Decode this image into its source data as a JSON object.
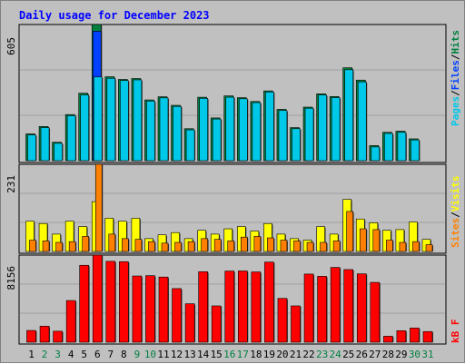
{
  "title": "Daily usage for December 2023",
  "colors": {
    "pages": "#00c8e8",
    "files": "#0040ff",
    "hits": "#008040",
    "visits": "#ffff00",
    "sites": "#ff8000",
    "kbytes": "#ff0000",
    "weekday_label": "#000000",
    "weekend_label": "#008040"
  },
  "chart_data": [
    {
      "type": "bar",
      "panel": "hits_files_pages",
      "ymax_label": "605",
      "ymax": 605,
      "categories": [
        "1",
        "2",
        "3",
        "4",
        "5",
        "6",
        "7",
        "8",
        "9",
        "10",
        "11",
        "12",
        "13",
        "14",
        "15",
        "16",
        "17",
        "18",
        "19",
        "20",
        "21",
        "22",
        "23",
        "24",
        "25",
        "26",
        "27",
        "28",
        "29",
        "30",
        "31"
      ],
      "weekend": [
        2,
        3,
        9,
        10,
        16,
        17,
        23,
        24,
        30,
        31
      ],
      "series": [
        {
          "name": "Hits",
          "values": [
            119,
            152,
            82,
            205,
            300,
            605,
            373,
            361,
            365,
            270,
            284,
            246,
            142,
            282,
            190,
            288,
            280,
            263,
            310,
            228,
            147,
            238,
            297,
            285,
            413,
            358,
            67,
            126,
            131,
            97,
            0
          ]
        },
        {
          "name": "Files",
          "values": [
            0,
            0,
            0,
            0,
            0,
            575,
            0,
            0,
            0,
            0,
            0,
            0,
            0,
            0,
            0,
            0,
            0,
            0,
            0,
            0,
            0,
            0,
            0,
            0,
            0,
            0,
            0,
            0,
            0,
            0,
            0
          ]
        },
        {
          "name": "Pages",
          "values": [
            114,
            147,
            77,
            200,
            292,
            372,
            366,
            356,
            359,
            265,
            279,
            241,
            137,
            277,
            185,
            282,
            275,
            258,
            305,
            223,
            142,
            233,
            292,
            280,
            404,
            350,
            61,
            121,
            126,
            92,
            0
          ]
        }
      ],
      "legend": [
        "Pages",
        "Files",
        "Hits"
      ]
    },
    {
      "type": "bar",
      "panel": "visits_sites",
      "ymax_label": "231",
      "ymax": 231,
      "categories": [
        "1",
        "2",
        "3",
        "4",
        "5",
        "6",
        "7",
        "8",
        "9",
        "10",
        "11",
        "12",
        "13",
        "14",
        "15",
        "16",
        "17",
        "18",
        "19",
        "20",
        "21",
        "22",
        "23",
        "24",
        "25",
        "26",
        "27",
        "28",
        "29",
        "30",
        "31"
      ],
      "series": [
        {
          "name": "Visits",
          "values": [
            80,
            74,
            46,
            80,
            66,
            132,
            88,
            80,
            88,
            34,
            44,
            50,
            34,
            56,
            46,
            60,
            66,
            54,
            74,
            46,
            34,
            30,
            66,
            46,
            138,
            86,
            76,
            56,
            58,
            78,
            32
          ]
        },
        {
          "name": "Sites",
          "values": [
            30,
            28,
            24,
            26,
            40,
            231,
            46,
            34,
            32,
            26,
            22,
            24,
            26,
            34,
            32,
            28,
            38,
            40,
            36,
            30,
            28,
            24,
            24,
            28,
            106,
            60,
            58,
            30,
            24,
            26,
            18
          ]
        }
      ],
      "legend": [
        "Sites",
        "Visits"
      ]
    },
    {
      "type": "bar",
      "panel": "kbytes",
      "ymax_label": "8156",
      "ymax": 8156,
      "categories": [
        "1",
        "2",
        "3",
        "4",
        "5",
        "6",
        "7",
        "8",
        "9",
        "10",
        "11",
        "12",
        "13",
        "14",
        "15",
        "16",
        "17",
        "18",
        "19",
        "20",
        "21",
        "22",
        "23",
        "24",
        "25",
        "26",
        "27",
        "28",
        "29",
        "30",
        "31"
      ],
      "series": [
        {
          "name": "kB F",
          "values": [
            1100,
            1500,
            1030,
            3900,
            7200,
            8156,
            7570,
            7540,
            6200,
            6230,
            6100,
            5020,
            3600,
            6600,
            3400,
            6660,
            6670,
            6580,
            7500,
            4100,
            3400,
            6380,
            6170,
            7000,
            6800,
            6400,
            5600,
            560,
            1080,
            1330,
            1000
          ]
        }
      ],
      "legend": [
        "kB F"
      ]
    }
  ]
}
